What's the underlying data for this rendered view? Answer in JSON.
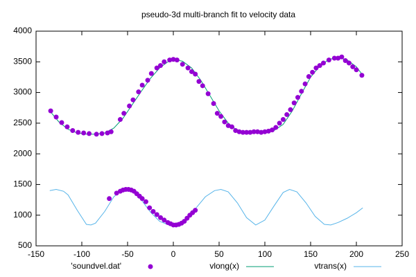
{
  "chart_data": {
    "type": "line",
    "title": "pseudo-3d multi-branch fit to velocity data",
    "xlim": [
      -150,
      250
    ],
    "xticks": [
      -150,
      -100,
      -50,
      0,
      50,
      100,
      150,
      200,
      250
    ],
    "ylim": [
      500,
      4000
    ],
    "yticks": [
      500,
      1000,
      1500,
      2000,
      2500,
      3000,
      3500,
      4000
    ],
    "grid": false,
    "legend": "bottom",
    "series": [
      {
        "name": "'soundvel.dat'",
        "type": "scatter",
        "color": "#9400d3",
        "x": [
          -134,
          -128,
          -122,
          -116,
          -110,
          -104,
          -98,
          -92,
          -84,
          -78,
          -72,
          -68,
          -58,
          -54,
          -48,
          -44,
          -38,
          -34,
          -28,
          -24,
          -18,
          -14,
          -10,
          -4,
          0,
          4,
          10,
          16,
          20,
          24,
          28,
          32,
          38,
          44,
          48,
          52,
          56,
          60,
          64,
          68,
          72,
          76,
          80,
          84,
          88,
          92,
          96,
          100,
          104,
          108,
          112,
          116,
          120,
          124,
          128,
          132,
          136,
          140,
          144,
          148,
          152,
          156,
          160,
          164,
          170,
          176,
          180,
          184,
          188,
          192,
          196,
          200,
          206,
          -70,
          -62,
          -58,
          -55,
          -52,
          -49,
          -46,
          -43,
          -40,
          -37,
          -34,
          -30,
          -26,
          -22,
          -18,
          -14,
          -10,
          -6,
          -3,
          0,
          3,
          6,
          9,
          12,
          15,
          18,
          21,
          24
        ],
        "values": [
          2700,
          2600,
          2510,
          2440,
          2380,
          2350,
          2340,
          2330,
          2320,
          2330,
          2340,
          2360,
          2560,
          2660,
          2780,
          2880,
          3010,
          3120,
          3200,
          3310,
          3400,
          3440,
          3500,
          3530,
          3540,
          3530,
          3460,
          3400,
          3340,
          3300,
          3180,
          3110,
          2980,
          2820,
          2660,
          2610,
          2520,
          2460,
          2440,
          2380,
          2360,
          2350,
          2350,
          2350,
          2360,
          2360,
          2350,
          2360,
          2370,
          2390,
          2430,
          2500,
          2560,
          2640,
          2720,
          2830,
          2920,
          3020,
          3140,
          3260,
          3330,
          3400,
          3440,
          3480,
          3530,
          3560,
          3560,
          3580,
          3520,
          3480,
          3420,
          3370,
          3280,
          1270,
          1360,
          1390,
          1410,
          1420,
          1420,
          1410,
          1390,
          1350,
          1310,
          1270,
          1220,
          1120,
          1060,
          1010,
          960,
          920,
          880,
          860,
          840,
          840,
          850,
          870,
          900,
          950,
          1000,
          1040,
          1080
        ]
      },
      {
        "name": "vlong(x)",
        "type": "line",
        "color": "#009e73",
        "x": [
          -135,
          -125,
          -115,
          -105,
          -95,
          -85,
          -75,
          -65,
          -55,
          -45,
          -35,
          -25,
          -15,
          -5,
          0,
          10,
          20,
          30,
          40,
          50,
          60,
          70,
          80,
          90,
          100,
          110,
          120,
          130,
          140,
          150,
          160,
          170,
          180,
          190,
          200,
          207
        ],
        "values": [
          2700,
          2520,
          2400,
          2340,
          2320,
          2320,
          2340,
          2420,
          2580,
          2800,
          3020,
          3230,
          3400,
          3510,
          3540,
          3510,
          3400,
          3200,
          2950,
          2700,
          2500,
          2380,
          2340,
          2340,
          2350,
          2380,
          2480,
          2700,
          2980,
          3250,
          3430,
          3540,
          3570,
          3530,
          3420,
          3280
        ]
      },
      {
        "name": "vtrans(x)",
        "type": "line",
        "color": "#56b4e9",
        "x": [
          -135,
          -128,
          -120,
          -115,
          -105,
          -95,
          -90,
          -85,
          -75,
          -65,
          -55,
          -45,
          -35,
          -25,
          -15,
          -5,
          0,
          5,
          15,
          25,
          35,
          45,
          52,
          60,
          70,
          80,
          90,
          100,
          110,
          120,
          127,
          135,
          145,
          155,
          165,
          172,
          180,
          190,
          200,
          207
        ],
        "values": [
          1400,
          1420,
          1390,
          1330,
          1080,
          850,
          840,
          870,
          1060,
          1300,
          1420,
          1400,
          1250,
          1050,
          900,
          840,
          840,
          860,
          950,
          1120,
          1300,
          1400,
          1420,
          1380,
          1200,
          960,
          840,
          920,
          1150,
          1370,
          1420,
          1380,
          1200,
          980,
          850,
          840,
          880,
          950,
          1040,
          1120
        ]
      }
    ]
  }
}
